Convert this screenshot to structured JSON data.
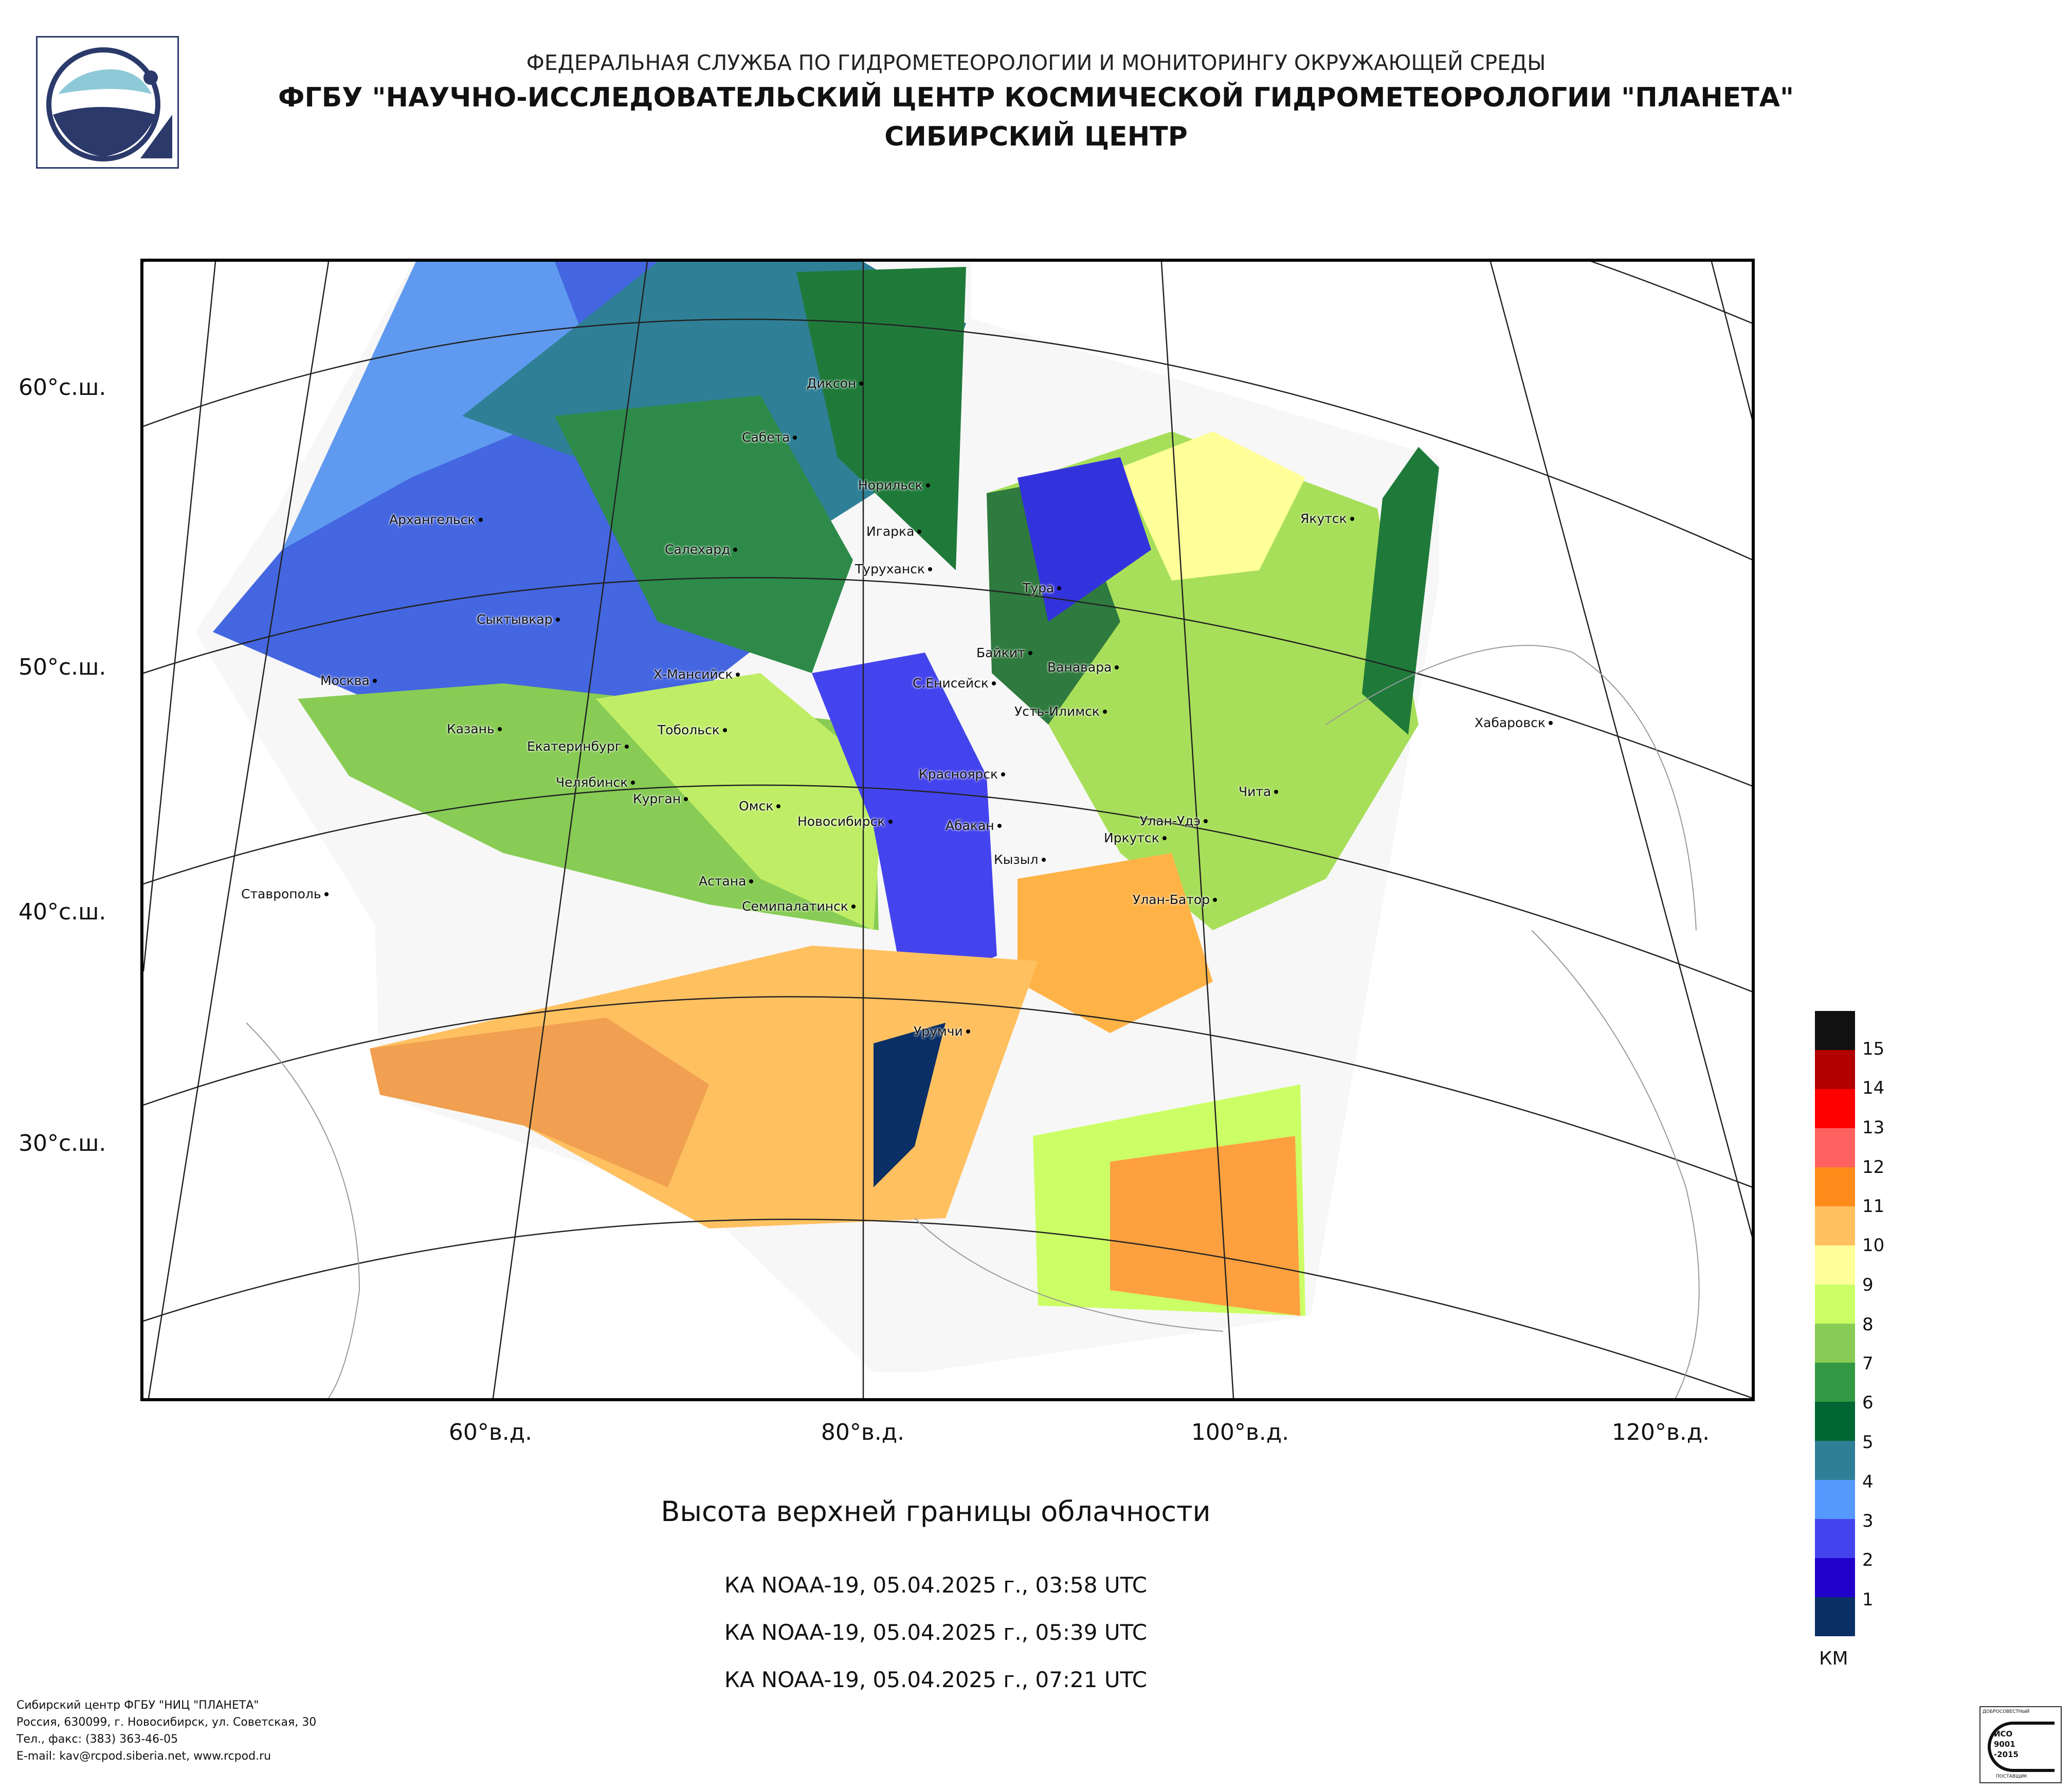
{
  "header": {
    "line1": "ФЕДЕРАЛЬНАЯ СЛУЖБА ПО ГИДРОМЕТЕОРОЛОГИИ И МОНИТОРИНГУ ОКРУЖАЮЩЕЙ СРЕДЫ",
    "line2": "ФГБУ \"НАУЧНО-ИССЛЕДОВАТЕЛЬСКИЙ ЦЕНТР КОСМИЧЕСКОЙ ГИДРОМЕТЕОРОЛОГИИ \"ПЛАНЕТА\"",
    "line3": "СИБИРСКИЙ ЦЕНТР"
  },
  "map": {
    "lat_labels": [
      "60°с.ш.",
      "50°с.ш.",
      "40°с.ш.",
      "30°с.ш."
    ],
    "lon_labels": [
      "60°в.д.",
      "80°в.д.",
      "100°в.д.",
      "120°в.д."
    ],
    "cities": [
      "Диксон",
      "Сабета",
      "Норильск",
      "Игарка",
      "Туруханск",
      "Архангельск",
      "Салехард",
      "Тура",
      "Якутск",
      "Сыктывкар",
      "Байкит",
      "Ванавара",
      "Москва",
      "Х-Мансийск",
      "С.Енисейск",
      "Усть-Илимск",
      "Казань",
      "Тобольск",
      "Екатеринбург",
      "Хабаровск",
      "Челябинск",
      "Курган",
      "Омск",
      "Красноярск",
      "Чита",
      "Новосибирск",
      "Абакан",
      "Улан-Удэ",
      "Иркутск",
      "Кызыл",
      "Астана",
      "Ставрополь",
      "Семипалатинск",
      "Улан-Батор",
      "Урумчи"
    ]
  },
  "legend": {
    "values": [
      "15",
      "14",
      "13",
      "12",
      "11",
      "10",
      "9",
      "8",
      "7",
      "6",
      "5",
      "4",
      "3",
      "2",
      "1"
    ],
    "colors": [
      "#111111",
      "#b30000",
      "#ff0000",
      "#ff6060",
      "#ff8c1a",
      "#ffc060",
      "#ffff99",
      "#ccff66",
      "#88cc55",
      "#339944",
      "#006633",
      "#2f8096",
      "#5599ff",
      "#4444ee",
      "#2200cc",
      "#0a2f66"
    ],
    "unit": "КМ"
  },
  "title": "Высота верхней границы облачности",
  "passes": [
    "КА NOAA-19, 05.04.2025 г., 03:58 UTC",
    "КА NOAA-19, 05.04.2025 г., 05:39 UTC",
    "КА NOAA-19, 05.04.2025 г., 07:21 UTC"
  ],
  "footer": {
    "line1": "Сибирский центр ФГБУ \"НИЦ \"ПЛАНЕТА\"",
    "line2": "Россия, 630099, г. Новосибирск, ул. Советская, 30",
    "line3": "Тел., факс: (383) 363-46-05",
    "line4": "E-mail: kav@rcpod.siberia.net, www.rcpod.ru"
  },
  "iso_badge": {
    "top": "ДОБРОСОВЕСТНЫЙ",
    "l1": "ИСО",
    "l2": "9001",
    "l3": "-2015",
    "bottom": "ПОСТАВЩИК"
  }
}
